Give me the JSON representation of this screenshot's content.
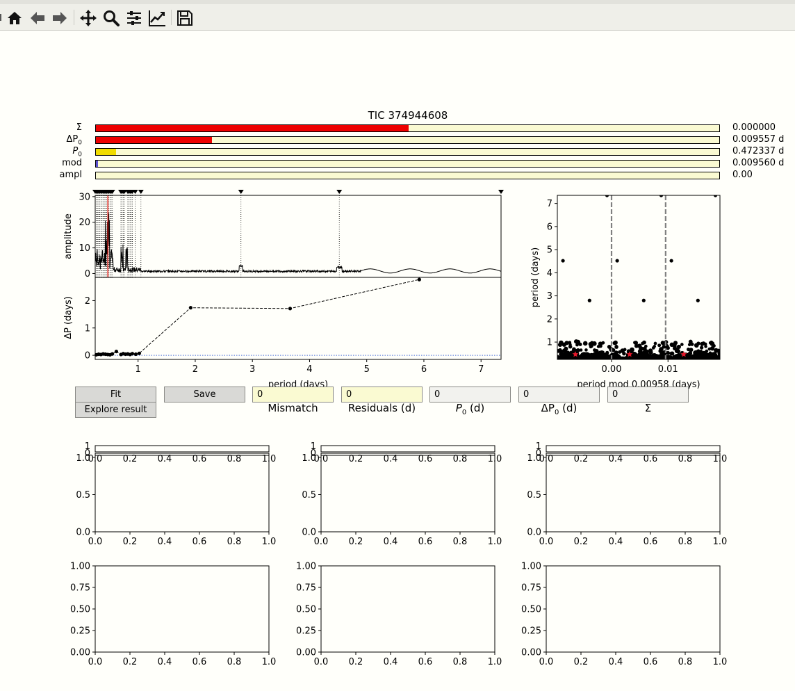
{
  "toolbar": {
    "buttons": [
      {
        "name": "home-icon"
      },
      {
        "name": "back-arrow-icon"
      },
      {
        "name": "forward-arrow-icon"
      },
      {
        "name": "pan-icon"
      },
      {
        "name": "zoom-icon"
      },
      {
        "name": "configure-subplots-icon"
      },
      {
        "name": "edit-axis-icon"
      },
      {
        "name": "save-icon"
      }
    ]
  },
  "title": "TIC 374944608",
  "bars": [
    {
      "label": "Σ",
      "value": "0.000000",
      "fraction": 0.502,
      "color": "#ee0000"
    },
    {
      "label": "ΔP",
      "sub": "0",
      "value": "0.009557 d",
      "fraction": 0.186,
      "color": "#ee0000"
    },
    {
      "label": "P",
      "sub": "0",
      "italic": true,
      "value": "0.472337 d",
      "fraction": 0.032,
      "color": "#f0dc00"
    },
    {
      "label": "mod",
      "value": "0.009560 d",
      "fraction": 0.003,
      "color": "#5a4fcf"
    },
    {
      "label": "ampl",
      "value": "0.00",
      "fraction": 0.0,
      "color": "#ee0000"
    }
  ],
  "buttons": {
    "fit": "Fit",
    "save": "Save",
    "explore": "Explore result"
  },
  "textboxes": [
    {
      "value": "0",
      "label": "Mismatch",
      "bg": "#fafad2"
    },
    {
      "value": "0",
      "label": "Residuals (d)",
      "bg": "#fafad2"
    },
    {
      "value": "0",
      "label": "P",
      "sub": "0",
      "unit": " (d)",
      "bg": "#f2f2ee"
    },
    {
      "value": "0",
      "label": "ΔP",
      "sub": "0",
      "unit": " (d)",
      "bg": "#f2f2ee"
    },
    {
      "value": "0",
      "label": "Σ",
      "bg": "#f2f2ee"
    }
  ],
  "chart_data": [
    {
      "type": "line",
      "name": "periodogram",
      "xlabel": "",
      "ylabel": "amplitude",
      "xlim": [
        0.25,
        7.35
      ],
      "ylim": [
        -1.5,
        30.5
      ],
      "yticks": [
        0,
        10,
        20,
        30
      ],
      "selected_period_markers": [
        0.25,
        0.27,
        0.29,
        0.31,
        0.33,
        0.35,
        0.37,
        0.39,
        0.41,
        0.43,
        0.45,
        0.47,
        0.49,
        0.51,
        0.53,
        0.55,
        0.7,
        0.72,
        0.74,
        0.76,
        0.82,
        0.84,
        0.86,
        0.88,
        0.9,
        0.95,
        1.05,
        2.8,
        4.52,
        7.35
      ],
      "current_period": 0.472
    },
    {
      "type": "line",
      "name": "period-spacing",
      "xlabel": "period (days)",
      "ylabel": "ΔP (days)",
      "xlim": [
        0.25,
        7.35
      ],
      "ylim": [
        -0.15,
        2.85
      ],
      "xticks": [
        1,
        2,
        3,
        4,
        5,
        6,
        7
      ],
      "yticks": [
        0,
        1,
        2
      ],
      "x": [
        0.27,
        0.31,
        0.35,
        0.39,
        0.43,
        0.47,
        0.51,
        0.55,
        0.62,
        0.7,
        0.74,
        0.78,
        0.82,
        0.86,
        0.9,
        0.96,
        1.02,
        1.92,
        3.66,
        5.92
      ],
      "y": [
        0.02,
        0.04,
        0.03,
        0.05,
        0.04,
        0.03,
        0.02,
        0.05,
        0.14,
        0.03,
        0.06,
        0.04,
        0.05,
        0.03,
        0.06,
        0.04,
        0.07,
        1.74,
        1.71,
        2.77
      ],
      "baseline": 0.0
    },
    {
      "type": "scatter",
      "name": "echelle",
      "xlabel": "period mod 0.00958 (days)",
      "ylabel": "period (days)",
      "xlim": [
        -0.0096,
        0.0192
      ],
      "ylim": [
        0.25,
        7.35
      ],
      "xticks": [
        0.0,
        0.01
      ],
      "xticklabels": [
        "0.00",
        "0.01"
      ],
      "yticks": [
        1,
        2,
        3,
        4,
        5,
        6,
        7
      ],
      "mod_period": 0.00958,
      "high_points": [
        {
          "x": -0.0086,
          "y": 4.52
        },
        {
          "x": -0.0039,
          "y": 2.8
        },
        {
          "x": 0.001,
          "y": 4.52
        },
        {
          "x": 0.0057,
          "y": 2.8
        },
        {
          "x": 0.0106,
          "y": 4.52
        },
        {
          "x": 0.0153,
          "y": 2.8
        },
        {
          "x": -0.0008,
          "y": 7.35
        },
        {
          "x": 0.0088,
          "y": 7.35
        },
        {
          "x": 0.0184,
          "y": 7.35
        }
      ],
      "selected_stars": [
        {
          "x": -0.0064,
          "y": 0.47
        },
        {
          "x": 0.0032,
          "y": 0.47
        },
        {
          "x": 0.0128,
          "y": 0.47
        }
      ]
    }
  ],
  "empty_axes": {
    "top_ytick_labels": [
      "0",
      "1"
    ],
    "xtick_labels": [
      "0.0",
      "0.2",
      "0.4",
      "0.6",
      "0.8",
      "1.0"
    ],
    "mid_ytick_labels": [
      "0.0",
      "0.5",
      "1.0"
    ],
    "bottom_ytick_labels": [
      "0.00",
      "0.25",
      "0.50",
      "0.75",
      "1.00"
    ]
  }
}
